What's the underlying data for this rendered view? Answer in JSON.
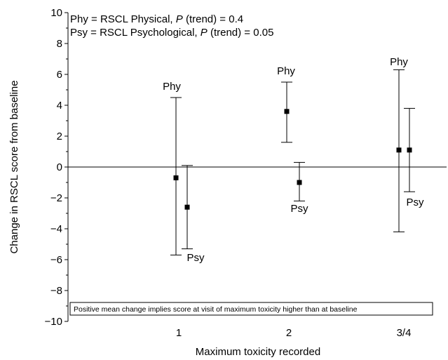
{
  "chart_data": {
    "type": "scatter",
    "title": "",
    "xlabel": "Maximum toxicity recorded",
    "ylabel": "Change in RSCL score from baseline",
    "categories": [
      "1",
      "2",
      "3/4"
    ],
    "ylim": [
      -10,
      10
    ],
    "yticks": [
      -10,
      -8,
      -6,
      -4,
      -2,
      0,
      2,
      4,
      6,
      8,
      10
    ],
    "ytick_labels": [
      "−10",
      "−8",
      "−6",
      "−4",
      "−2",
      "0",
      "2",
      "4",
      "6",
      "8",
      "10"
    ],
    "grid": false,
    "reference_line": 0,
    "legend_lines": [
      {
        "prefix": "Phy = RSCL Physical, ",
        "p": "P",
        "suffix": " (trend) = 0.4"
      },
      {
        "prefix": "Psy = RSCL Psychological, ",
        "p": "P",
        "suffix": " (trend) = 0.05"
      }
    ],
    "note": "Positive mean change implies score at visit of maximum toxicity higher than at baseline",
    "series": [
      {
        "name": "Phy",
        "values": [
          -0.7,
          3.6,
          1.1
        ],
        "lower": [
          -5.7,
          1.6,
          -4.2
        ],
        "upper": [
          4.5,
          5.5,
          6.3
        ],
        "label_y": [
          5.0,
          6.0,
          6.6
        ]
      },
      {
        "name": "Psy",
        "values": [
          -2.6,
          -1.0,
          1.1
        ],
        "lower": [
          -5.3,
          -2.2,
          -1.6
        ],
        "upper": [
          0.1,
          0.3,
          3.8
        ],
        "label_y": [
          -6.1,
          -2.9,
          -2.5
        ]
      }
    ]
  }
}
